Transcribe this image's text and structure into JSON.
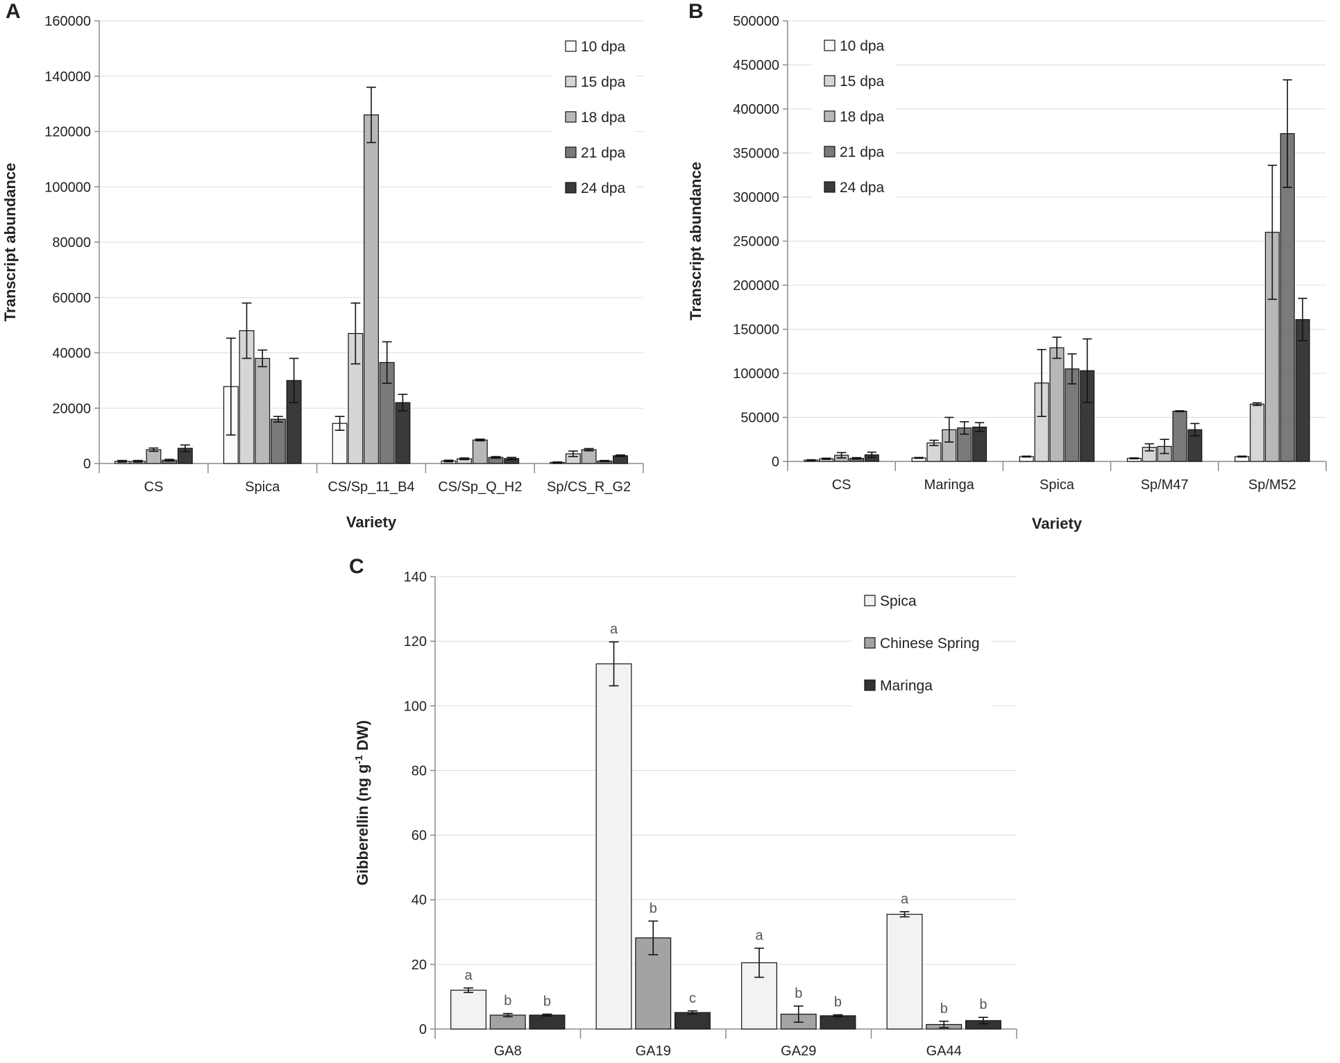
{
  "figure": {
    "panels": [
      "A",
      "B",
      "C"
    ]
  },
  "colors": {
    "s10": "#fafafa",
    "s15": "#d6d6d6",
    "s18": "#b8b8b8",
    "s21": "#7a7a7a",
    "s24": "#3a3a3a",
    "spica": "#f2f2f2",
    "chinese_spring": "#a3a3a3",
    "maringa": "#333333",
    "axis": "#8a8a8a",
    "grid": "#dcdcdc",
    "bar_stroke": "#111111"
  },
  "chart_data": [
    {
      "panel": "A",
      "type": "bar",
      "title": "",
      "xlabel": "Variety",
      "ylabel": "Transcript abundance",
      "ylim": [
        0,
        160000
      ],
      "yticks": [
        0,
        20000,
        40000,
        60000,
        80000,
        100000,
        120000,
        140000,
        160000
      ],
      "grid": true,
      "legend_position": "top-right",
      "categories": [
        "CS",
        "Spica",
        "CS/Sp_11_B4",
        "CS/Sp_Q_H2",
        "Sp/CS_R_G2"
      ],
      "series": [
        {
          "name": "10 dpa",
          "color": "#fafafa",
          "values": [
            800,
            27800,
            14500,
            900,
            400
          ],
          "errors": [
            300,
            17500,
            2500,
            300,
            150
          ]
        },
        {
          "name": "15 dpa",
          "color": "#d6d6d6",
          "values": [
            800,
            48000,
            47000,
            1700,
            3500
          ],
          "errors": [
            300,
            10000,
            11000,
            300,
            1000
          ]
        },
        {
          "name": "18 dpa",
          "color": "#b8b8b8",
          "values": [
            5000,
            38000,
            126000,
            8500,
            5000
          ],
          "errors": [
            600,
            3000,
            10000,
            300,
            400
          ]
        },
        {
          "name": "21 dpa",
          "color": "#7a7a7a",
          "values": [
            1200,
            16000,
            36500,
            2200,
            900
          ],
          "errors": [
            300,
            1000,
            7500,
            300,
            200
          ]
        },
        {
          "name": "24 dpa",
          "color": "#3a3a3a",
          "values": [
            5500,
            30000,
            22000,
            1800,
            2800
          ],
          "errors": [
            1200,
            8000,
            3000,
            400,
            300
          ]
        }
      ]
    },
    {
      "panel": "B",
      "type": "bar",
      "title": "",
      "xlabel": "Variety",
      "ylabel": "Transcript abundance",
      "ylim": [
        0,
        500000
      ],
      "yticks": [
        0,
        50000,
        100000,
        150000,
        200000,
        250000,
        300000,
        350000,
        400000,
        450000,
        500000
      ],
      "grid": true,
      "legend_position": "top-left",
      "categories": [
        "CS",
        "Maringa",
        "Spica",
        "Sp/M47",
        "Sp/M52"
      ],
      "series": [
        {
          "name": "10 dpa",
          "color": "#fafafa",
          "values": [
            1500,
            4000,
            5500,
            3500,
            5500
          ],
          "errors": [
            400,
            500,
            500,
            500,
            500
          ]
        },
        {
          "name": "15 dpa",
          "color": "#d6d6d6",
          "values": [
            3000,
            21000,
            89000,
            16000,
            65000
          ],
          "errors": [
            700,
            3000,
            38000,
            4000,
            1500
          ]
        },
        {
          "name": "18 dpa",
          "color": "#b8b8b8",
          "values": [
            7000,
            36000,
            129000,
            17000,
            260000
          ],
          "errors": [
            3000,
            14000,
            12000,
            8000,
            76000
          ]
        },
        {
          "name": "21 dpa",
          "color": "#7a7a7a",
          "values": [
            3500,
            38000,
            105000,
            57000,
            372000
          ],
          "errors": [
            800,
            7000,
            17000,
            500,
            61000
          ]
        },
        {
          "name": "24 dpa",
          "color": "#3a3a3a",
          "values": [
            7500,
            39000,
            103000,
            36000,
            161000
          ],
          "errors": [
            3000,
            5000,
            36000,
            7000,
            24000
          ]
        }
      ]
    },
    {
      "panel": "C",
      "type": "bar",
      "title": "",
      "xlabel": "",
      "ylabel": "Gibberellin (ng g",
      "ylabel_superscript": "-1",
      "ylabel_suffix": " DW)",
      "ylim": [
        0,
        140
      ],
      "yticks": [
        0,
        20,
        40,
        60,
        80,
        100,
        120,
        140
      ],
      "grid": true,
      "legend_position": "top-right",
      "categories": [
        "GA8",
        "GA19",
        "GA29",
        "GA44"
      ],
      "series": [
        {
          "name": "Spica",
          "color": "#f2f2f2",
          "values": [
            12,
            113,
            20.5,
            35.5
          ],
          "errors": [
            0.7,
            6.8,
            4.5,
            0.8
          ],
          "letters": [
            "a",
            "a",
            "a",
            "a"
          ]
        },
        {
          "name": "Chinese Spring",
          "color": "#a3a3a3",
          "values": [
            4.3,
            28.2,
            4.6,
            1.4
          ],
          "errors": [
            0.5,
            5.2,
            2.5,
            1.0
          ],
          "letters": [
            "b",
            "b",
            "b",
            "b"
          ]
        },
        {
          "name": "Maringa",
          "color": "#333333",
          "values": [
            4.3,
            5.1,
            4.1,
            2.6
          ],
          "errors": [
            0.3,
            0.5,
            0.3,
            1.0
          ],
          "letters": [
            "b",
            "c",
            "b",
            "b"
          ]
        }
      ]
    }
  ]
}
